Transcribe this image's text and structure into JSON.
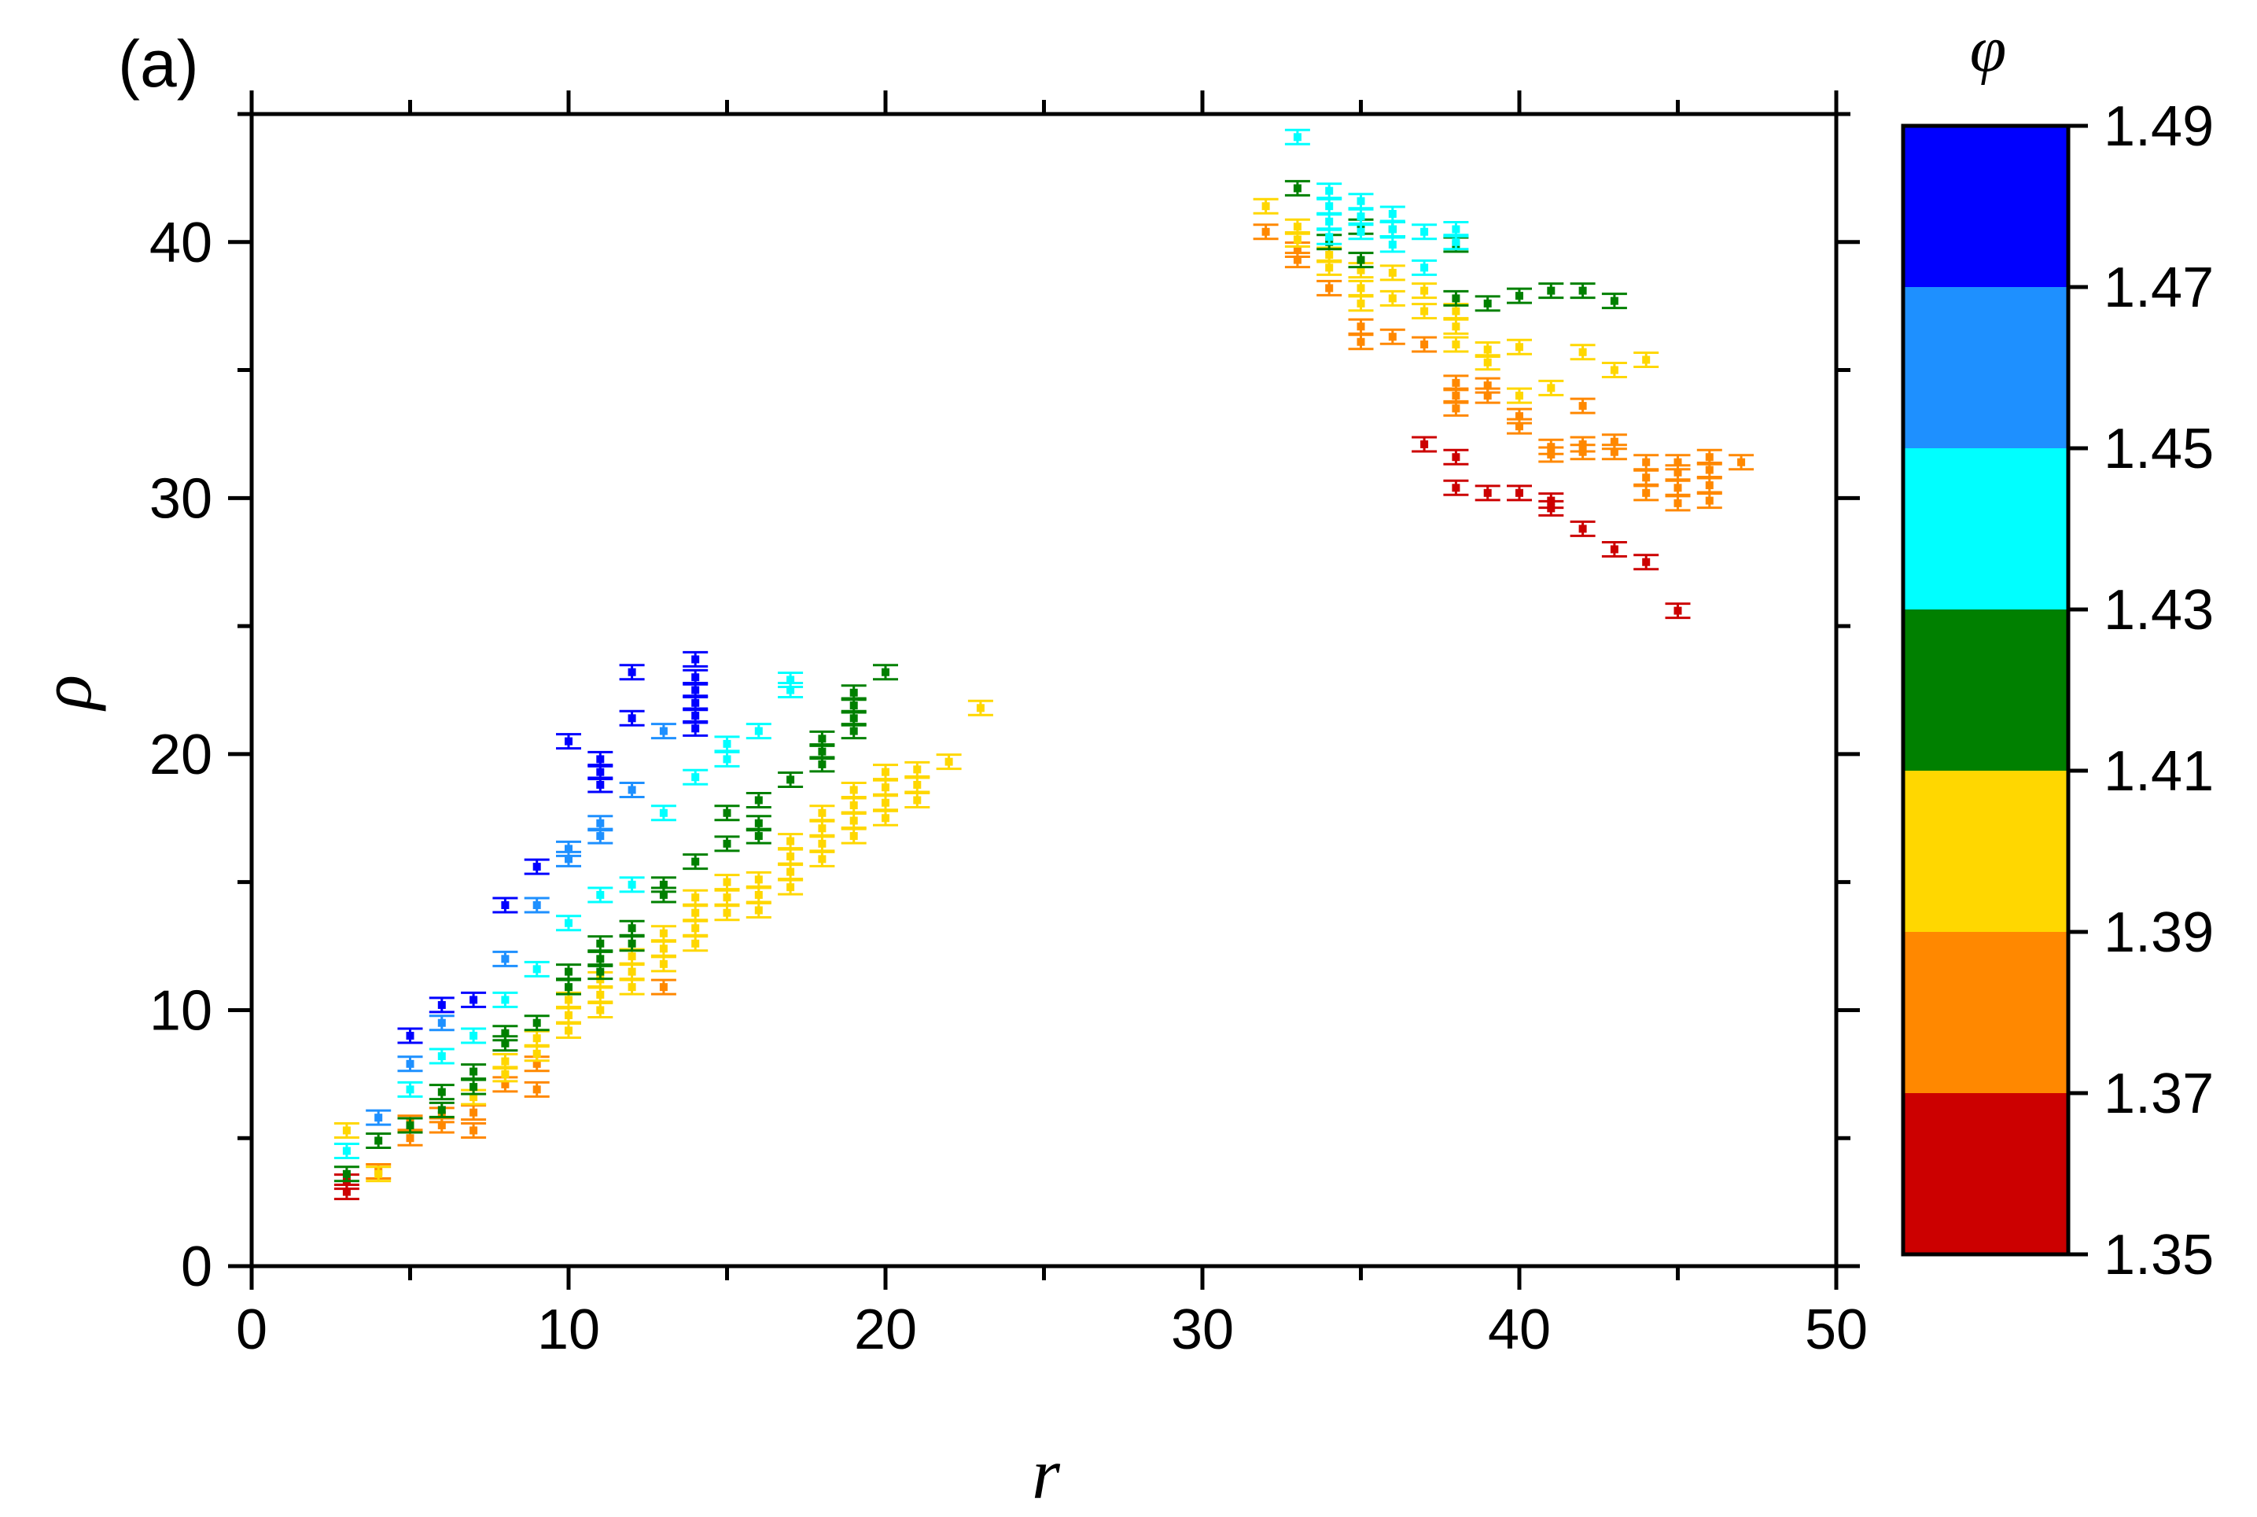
{
  "chart_data": {
    "type": "scatter",
    "panel_label": "(a)",
    "xlabel": "r",
    "ylabel": "ρ",
    "xlim": [
      0,
      50
    ],
    "ylim": [
      0,
      45
    ],
    "x_ticks": [
      0,
      10,
      20,
      30,
      40,
      50
    ],
    "y_ticks": [
      0,
      10,
      20,
      30,
      40
    ],
    "x_tick_labels": [
      "0",
      "10",
      "20",
      "30",
      "40",
      "50"
    ],
    "y_tick_labels": [
      "0",
      "10",
      "20",
      "30",
      "40"
    ],
    "error_bars": true,
    "colorbar": {
      "title": "φ",
      "min": 1.35,
      "max": 1.49,
      "bounds": [
        1.35,
        1.37,
        1.39,
        1.41,
        1.43,
        1.45,
        1.47,
        1.49
      ],
      "tick_labels": [
        "1.35",
        "1.37",
        "1.39",
        "1.41",
        "1.43",
        "1.45",
        "1.47",
        "1.49"
      ],
      "colors": [
        "#cc0000",
        "#ff8800",
        "#ffd700",
        "#008000",
        "#00ffff",
        "#1e90ff",
        "#0000ff"
      ]
    },
    "series": [
      {
        "phi_bin": 1.36,
        "color": "#cc0000",
        "points": [
          [
            3,
            2.9
          ],
          [
            3,
            3.3
          ],
          [
            37,
            32.1
          ],
          [
            38,
            31.6
          ],
          [
            38,
            30.4
          ],
          [
            39,
            30.2
          ],
          [
            40,
            30.2
          ],
          [
            41,
            29.6
          ],
          [
            41,
            29.9
          ],
          [
            42,
            28.8
          ],
          [
            43,
            28.0
          ],
          [
            44,
            27.5
          ],
          [
            45,
            25.6
          ]
        ]
      },
      {
        "phi_bin": 1.38,
        "color": "#ff8800",
        "points": [
          [
            4,
            3.7
          ],
          [
            5,
            5.0
          ],
          [
            5,
            5.6
          ],
          [
            6,
            5.5
          ],
          [
            6,
            5.9
          ],
          [
            7,
            5.3
          ],
          [
            7,
            6.0
          ],
          [
            8,
            7.1
          ],
          [
            9,
            6.9
          ],
          [
            9,
            7.9
          ],
          [
            13,
            10.9
          ],
          [
            32,
            40.4
          ],
          [
            33,
            39.3
          ],
          [
            33,
            39.7
          ],
          [
            34,
            38.2
          ],
          [
            35,
            36.1
          ],
          [
            35,
            36.7
          ],
          [
            36,
            36.3
          ],
          [
            37,
            36.0
          ],
          [
            38,
            33.5
          ],
          [
            38,
            34.0
          ],
          [
            38,
            34.5
          ],
          [
            39,
            34.0
          ],
          [
            39,
            34.4
          ],
          [
            40,
            32.8
          ],
          [
            40,
            33.2
          ],
          [
            41,
            31.7
          ],
          [
            41,
            32.0
          ],
          [
            42,
            31.8
          ],
          [
            42,
            32.1
          ],
          [
            42,
            33.6
          ],
          [
            43,
            31.8
          ],
          [
            43,
            32.2
          ],
          [
            44,
            30.2
          ],
          [
            44,
            30.8
          ],
          [
            44,
            31.4
          ],
          [
            45,
            29.8
          ],
          [
            45,
            30.4
          ],
          [
            45,
            31.0
          ],
          [
            45,
            31.4
          ],
          [
            46,
            29.9
          ],
          [
            46,
            30.5
          ],
          [
            46,
            31.1
          ],
          [
            46,
            31.6
          ],
          [
            47,
            31.4
          ]
        ]
      },
      {
        "phi_bin": 1.4,
        "color": "#ffd700",
        "points": [
          [
            3,
            5.3
          ],
          [
            4,
            3.6
          ],
          [
            7,
            6.6
          ],
          [
            8,
            7.5
          ],
          [
            8,
            8.0
          ],
          [
            9,
            8.3
          ],
          [
            9,
            8.9
          ],
          [
            10,
            9.2
          ],
          [
            10,
            9.8
          ],
          [
            10,
            10.4
          ],
          [
            11,
            10.0
          ],
          [
            11,
            10.6
          ],
          [
            11,
            11.2
          ],
          [
            12,
            10.9
          ],
          [
            12,
            11.5
          ],
          [
            12,
            12.1
          ],
          [
            13,
            11.8
          ],
          [
            13,
            12.4
          ],
          [
            13,
            13.0
          ],
          [
            14,
            12.6
          ],
          [
            14,
            13.2
          ],
          [
            14,
            13.8
          ],
          [
            14,
            14.4
          ],
          [
            15,
            13.8
          ],
          [
            15,
            14.4
          ],
          [
            15,
            15.0
          ],
          [
            16,
            13.9
          ],
          [
            16,
            14.5
          ],
          [
            16,
            15.1
          ],
          [
            17,
            14.8
          ],
          [
            17,
            15.4
          ],
          [
            17,
            16.0
          ],
          [
            17,
            16.6
          ],
          [
            18,
            15.9
          ],
          [
            18,
            16.5
          ],
          [
            18,
            17.1
          ],
          [
            18,
            17.7
          ],
          [
            19,
            16.8
          ],
          [
            19,
            17.4
          ],
          [
            19,
            18.0
          ],
          [
            19,
            18.6
          ],
          [
            20,
            17.5
          ],
          [
            20,
            18.1
          ],
          [
            20,
            18.7
          ],
          [
            20,
            19.3
          ],
          [
            21,
            18.2
          ],
          [
            21,
            18.8
          ],
          [
            21,
            19.4
          ],
          [
            22,
            19.7
          ],
          [
            23,
            21.8
          ],
          [
            32,
            41.4
          ],
          [
            33,
            40.1
          ],
          [
            33,
            40.6
          ],
          [
            34,
            39.0
          ],
          [
            34,
            39.5
          ],
          [
            35,
            37.6
          ],
          [
            35,
            38.2
          ],
          [
            35,
            38.9
          ],
          [
            36,
            37.8
          ],
          [
            36,
            38.8
          ],
          [
            37,
            37.3
          ],
          [
            37,
            38.1
          ],
          [
            38,
            36.0
          ],
          [
            38,
            36.7
          ],
          [
            38,
            37.3
          ],
          [
            39,
            35.3
          ],
          [
            39,
            35.8
          ],
          [
            40,
            34.0
          ],
          [
            40,
            35.9
          ],
          [
            41,
            34.3
          ],
          [
            42,
            35.7
          ],
          [
            43,
            35.0
          ],
          [
            44,
            35.4
          ]
        ]
      },
      {
        "phi_bin": 1.42,
        "color": "#008000",
        "points": [
          [
            3,
            3.6
          ],
          [
            4,
            4.9
          ],
          [
            5,
            5.5
          ],
          [
            6,
            6.1
          ],
          [
            6,
            6.8
          ],
          [
            7,
            7.0
          ],
          [
            7,
            7.6
          ],
          [
            8,
            8.7
          ],
          [
            8,
            9.1
          ],
          [
            9,
            9.5
          ],
          [
            10,
            10.9
          ],
          [
            10,
            11.5
          ],
          [
            11,
            11.5
          ],
          [
            11,
            12.0
          ],
          [
            11,
            12.6
          ],
          [
            12,
            12.6
          ],
          [
            12,
            13.2
          ],
          [
            13,
            14.5
          ],
          [
            13,
            14.9
          ],
          [
            14,
            15.8
          ],
          [
            15,
            16.5
          ],
          [
            15,
            17.7
          ],
          [
            16,
            16.8
          ],
          [
            16,
            17.3
          ],
          [
            16,
            18.2
          ],
          [
            17,
            19.0
          ],
          [
            18,
            19.6
          ],
          [
            18,
            20.1
          ],
          [
            18,
            20.6
          ],
          [
            19,
            20.9
          ],
          [
            19,
            21.4
          ],
          [
            19,
            21.9
          ],
          [
            19,
            22.4
          ],
          [
            20,
            23.2
          ],
          [
            33,
            42.1
          ],
          [
            34,
            40.0
          ],
          [
            35,
            39.3
          ],
          [
            35,
            40.6
          ],
          [
            36,
            40.5
          ],
          [
            38,
            37.8
          ],
          [
            38,
            39.9
          ],
          [
            39,
            37.6
          ],
          [
            40,
            37.9
          ],
          [
            41,
            38.1
          ],
          [
            42,
            38.1
          ],
          [
            43,
            37.7
          ]
        ]
      },
      {
        "phi_bin": 1.44,
        "color": "#00ffff",
        "points": [
          [
            3,
            4.5
          ],
          [
            5,
            6.9
          ],
          [
            6,
            8.2
          ],
          [
            7,
            9.0
          ],
          [
            8,
            10.4
          ],
          [
            9,
            11.6
          ],
          [
            10,
            13.4
          ],
          [
            11,
            14.5
          ],
          [
            12,
            14.9
          ],
          [
            13,
            17.7
          ],
          [
            14,
            19.1
          ],
          [
            15,
            19.8
          ],
          [
            15,
            20.4
          ],
          [
            16,
            20.9
          ],
          [
            17,
            22.5
          ],
          [
            17,
            22.9
          ],
          [
            33,
            44.1
          ],
          [
            34,
            40.2
          ],
          [
            34,
            40.8
          ],
          [
            34,
            41.4
          ],
          [
            34,
            42.0
          ],
          [
            35,
            40.4
          ],
          [
            35,
            41.0
          ],
          [
            35,
            41.6
          ],
          [
            36,
            39.9
          ],
          [
            36,
            40.5
          ],
          [
            36,
            41.1
          ],
          [
            37,
            39.0
          ],
          [
            37,
            40.4
          ],
          [
            38,
            40.0
          ],
          [
            38,
            40.5
          ]
        ]
      },
      {
        "phi_bin": 1.46,
        "color": "#1e90ff",
        "points": [
          [
            4,
            5.8
          ],
          [
            5,
            7.9
          ],
          [
            6,
            9.5
          ],
          [
            8,
            12.0
          ],
          [
            9,
            14.1
          ],
          [
            10,
            15.9
          ],
          [
            10,
            16.3
          ],
          [
            11,
            16.8
          ],
          [
            11,
            17.3
          ],
          [
            12,
            18.6
          ],
          [
            13,
            20.9
          ]
        ]
      },
      {
        "phi_bin": 1.48,
        "color": "#0000ff",
        "points": [
          [
            5,
            9.0
          ],
          [
            6,
            10.2
          ],
          [
            7,
            10.4
          ],
          [
            8,
            14.1
          ],
          [
            9,
            15.6
          ],
          [
            10,
            20.5
          ],
          [
            11,
            18.8
          ],
          [
            11,
            19.3
          ],
          [
            11,
            19.8
          ],
          [
            12,
            21.4
          ],
          [
            12,
            23.2
          ],
          [
            14,
            21.0
          ],
          [
            14,
            21.5
          ],
          [
            14,
            22.0
          ],
          [
            14,
            22.5
          ],
          [
            14,
            23.0
          ],
          [
            14,
            23.7
          ]
        ]
      }
    ]
  }
}
